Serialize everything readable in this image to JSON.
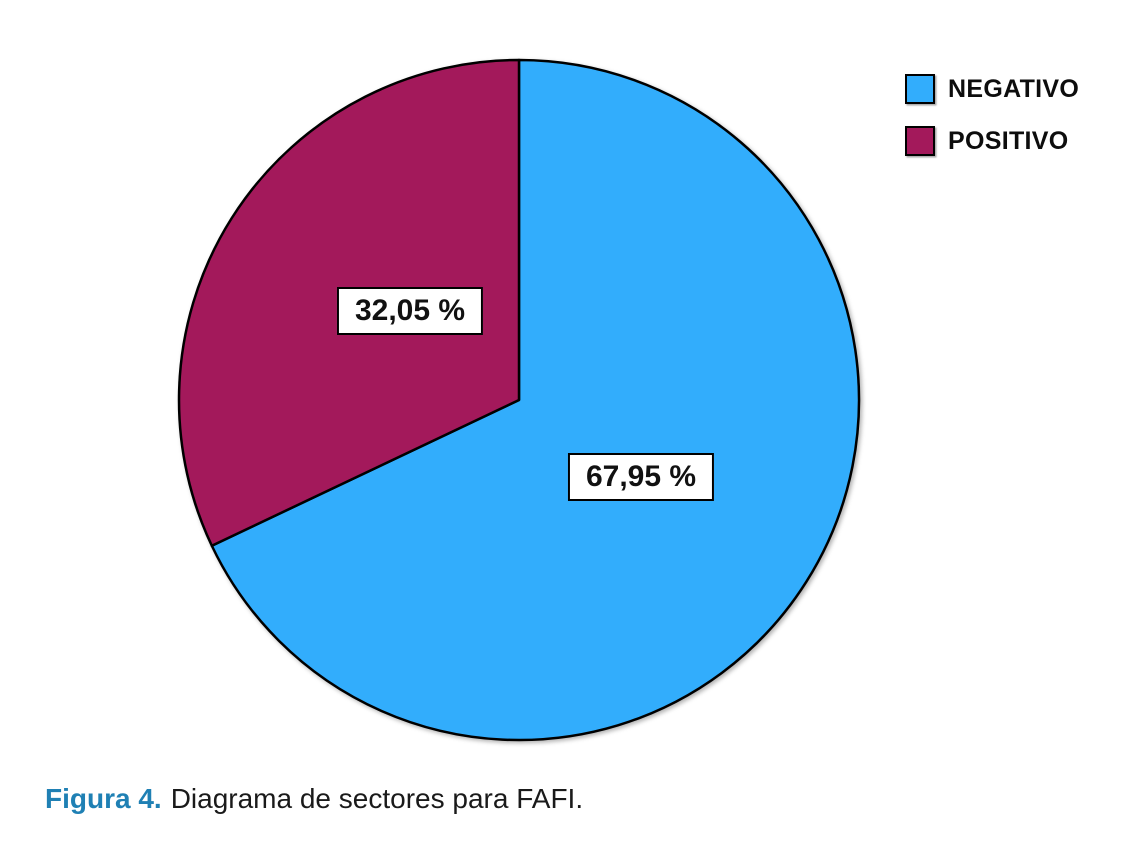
{
  "figure": {
    "caption_prefix": "Figura 4.",
    "caption_text": "Diagrama de sectores para FAFI."
  },
  "chart_data": {
    "type": "pie",
    "title": "",
    "start_angle_deg": 0,
    "direction": "clockwise",
    "legend_position": "top-right",
    "outline_color": "#000000",
    "caption_accent_color": "#1f80b4",
    "series": [
      {
        "name": "NEGATIVO",
        "value": 67.95,
        "label": "67,95 %",
        "color": "#32ADFC"
      },
      {
        "name": "POSITIVO",
        "value": 32.05,
        "label": "32,05 %",
        "color": "#A3195B"
      }
    ]
  }
}
